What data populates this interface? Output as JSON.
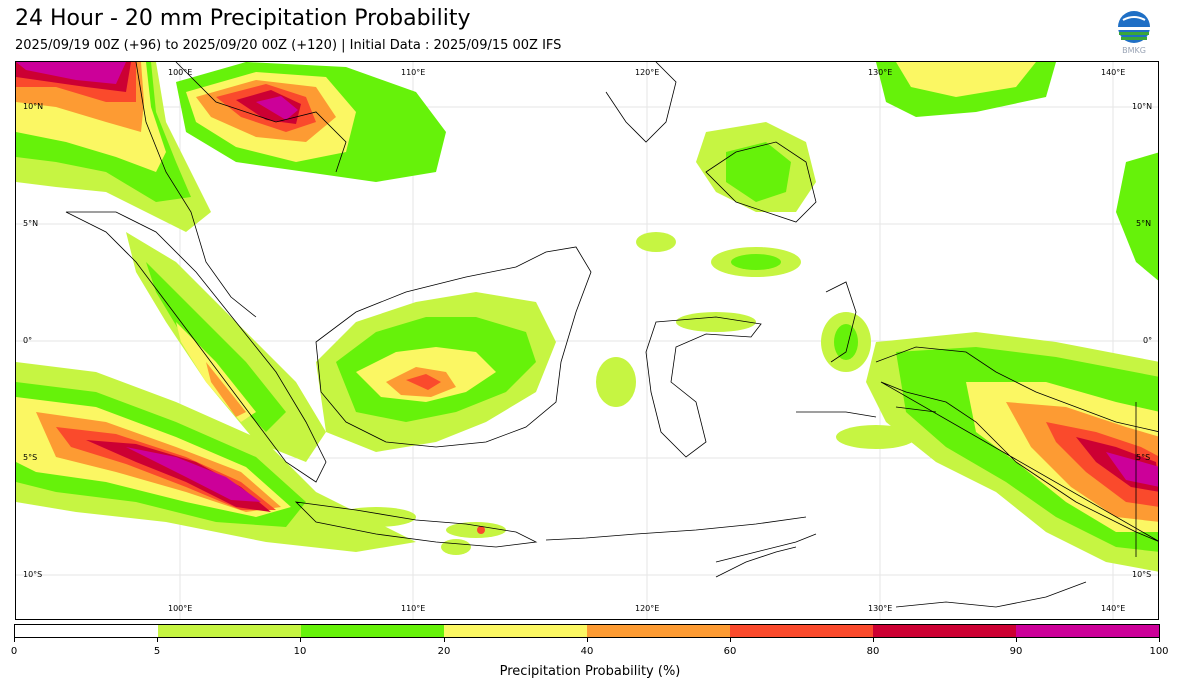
{
  "header": {
    "title": "24 Hour - 20 mm Precipitation Probability",
    "subtitle": "2025/09/19 00Z (+96) to 2025/09/20 00Z (+120) | Initial Data : 2025/09/15 00Z IFS",
    "logo_text": "BMKG"
  },
  "map": {
    "lon_labels": [
      "100°E",
      "110°E",
      "120°E",
      "130°E",
      "140°E"
    ],
    "lat_labels": [
      "10°N",
      "5°N",
      "0°",
      "5°S",
      "10°S"
    ],
    "region": "Indonesia",
    "land_color": "#ffffff",
    "coast_color": "#000000"
  },
  "colorbar": {
    "label": "Precipitation Probability (%)",
    "ticks": [
      "0",
      "5",
      "10",
      "20",
      "40",
      "60",
      "80",
      "90",
      "100"
    ],
    "colors": [
      "#ffffff",
      "#c6f542",
      "#66f20a",
      "#fbf763",
      "#fd9b33",
      "#fa4a2c",
      "#cc0033",
      "#cc0099"
    ]
  }
}
